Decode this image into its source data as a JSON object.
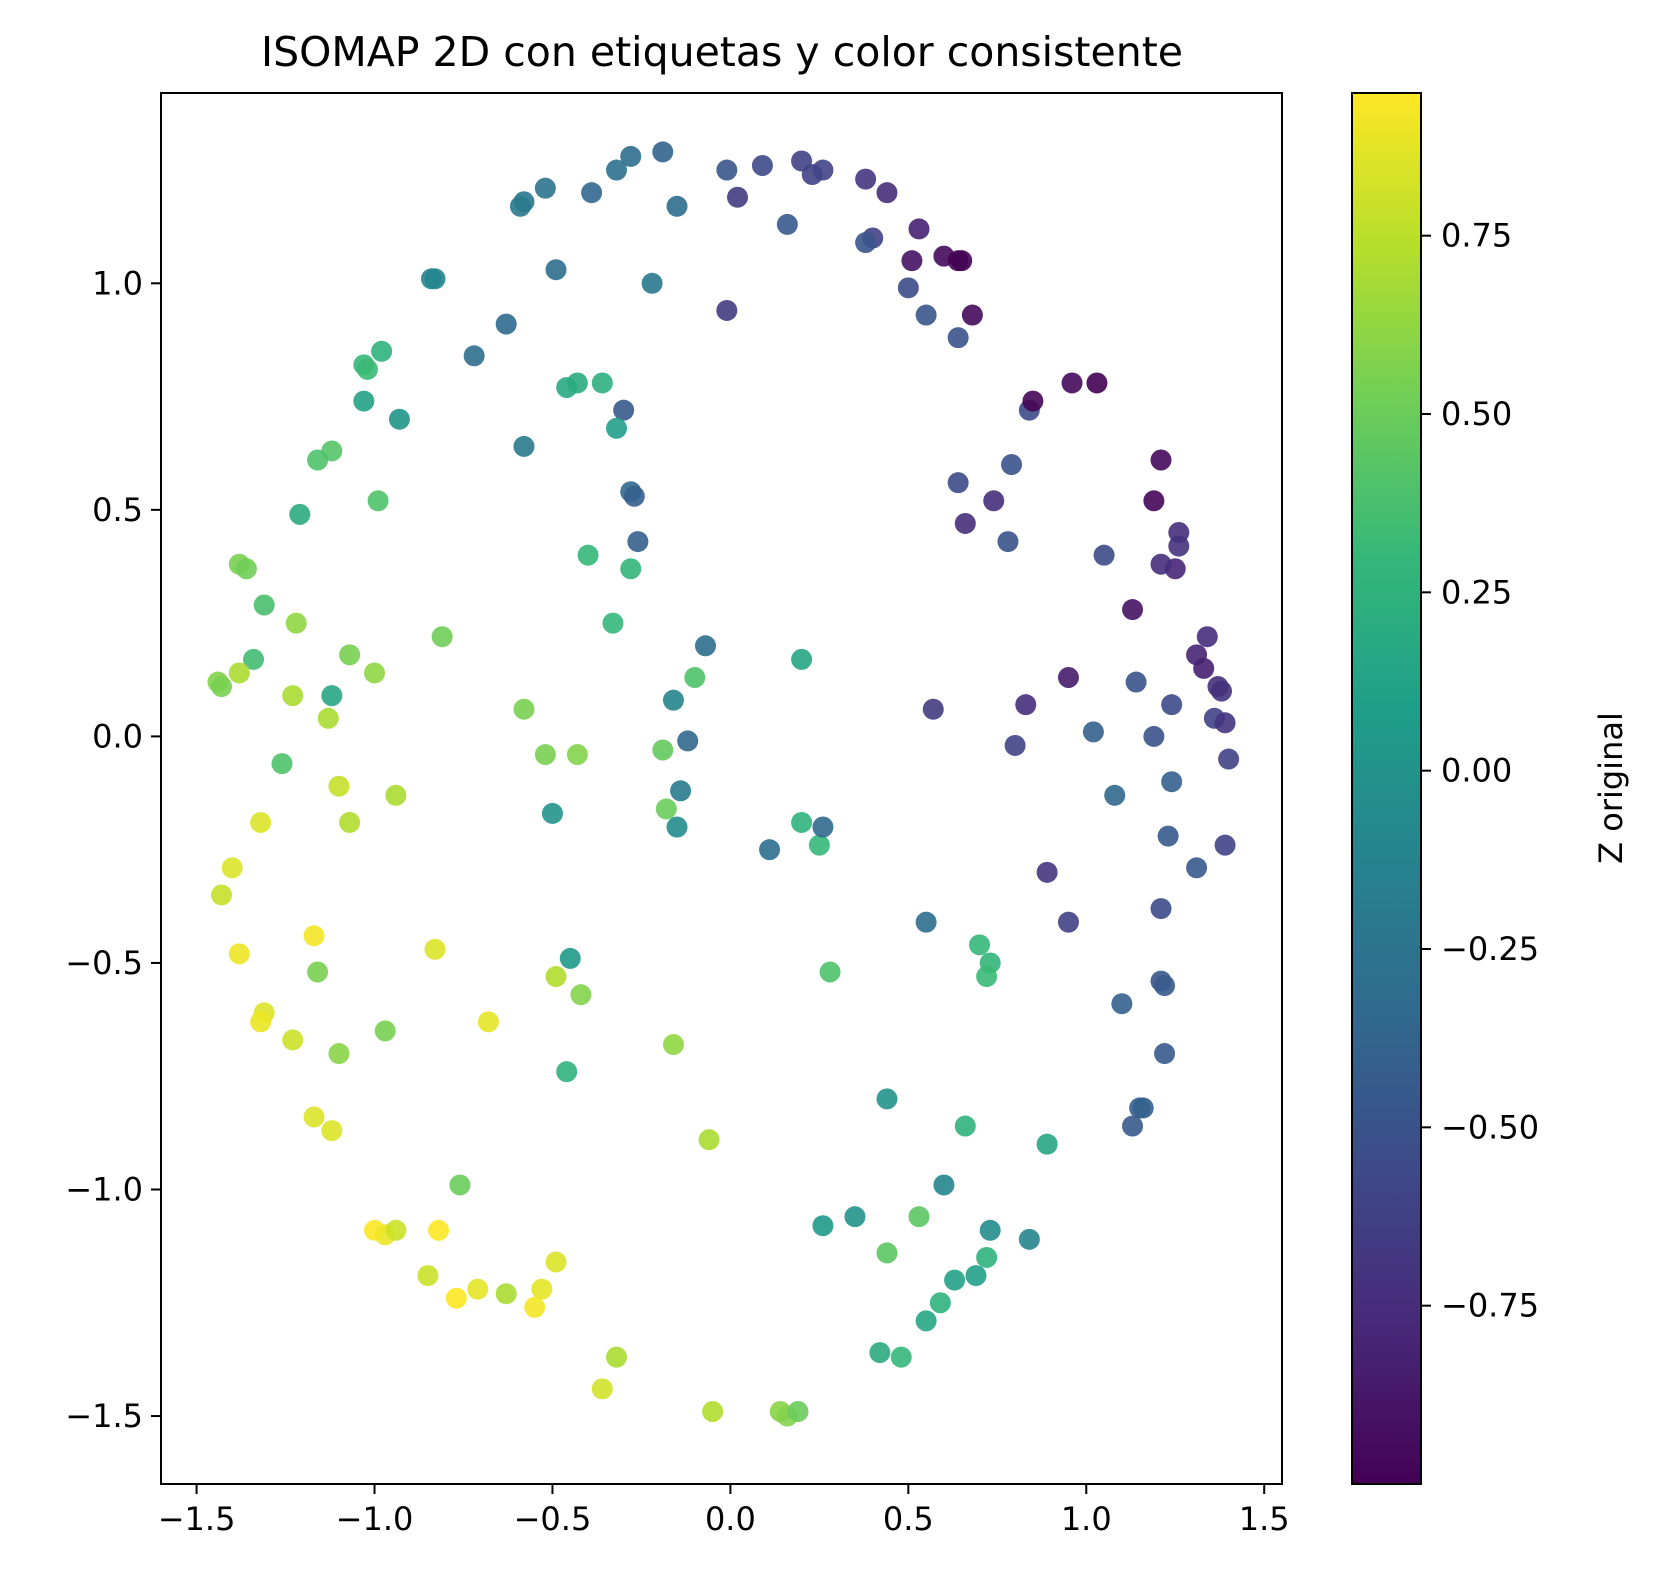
{
  "chart_data": {
    "type": "scatter",
    "title": "ISOMAP 2D con etiquetas y color consistente",
    "xlabel": "",
    "ylabel": "",
    "xlim": [
      -1.6,
      1.55
    ],
    "ylim": [
      -1.65,
      1.42
    ],
    "xticks": [
      -1.5,
      -1.0,
      -0.5,
      0.0,
      0.5,
      1.0,
      1.5
    ],
    "xtick_labels": [
      "−1.5",
      "−1.0",
      "−0.5",
      "0.0",
      "0.5",
      "1.0",
      "1.5"
    ],
    "yticks": [
      -1.5,
      -1.0,
      -0.5,
      0.0,
      0.5,
      1.0
    ],
    "ytick_labels": [
      "−1.5",
      "−1.0",
      "−0.5",
      "0.0",
      "0.5",
      "1.0"
    ],
    "grid": false,
    "colormap": "viridis",
    "colorbar": {
      "label": "Z original",
      "range": [
        -1.0,
        0.95
      ],
      "ticks": [
        -0.75,
        -0.5,
        -0.25,
        0.0,
        0.25,
        0.5,
        0.75
      ],
      "tick_labels": [
        "−0.75",
        "−0.50",
        "−0.25",
        "0.00",
        "0.25",
        "0.50",
        "0.75"
      ]
    },
    "colors": {
      "viridis_low": "#440154",
      "viridis_mid": "#21918c",
      "viridis_high": "#fde725"
    },
    "points": [
      {
        "x": -0.28,
        "y": 1.28,
        "z": -0.3
      },
      {
        "x": -0.19,
        "y": 1.29,
        "z": -0.38
      },
      {
        "x": -0.32,
        "y": 1.25,
        "z": -0.28
      },
      {
        "x": -0.39,
        "y": 1.2,
        "z": -0.36
      },
      {
        "x": -0.52,
        "y": 1.21,
        "z": -0.26
      },
      {
        "x": -0.58,
        "y": 1.18,
        "z": -0.22
      },
      {
        "x": -0.59,
        "y": 1.17,
        "z": -0.2
      },
      {
        "x": -0.15,
        "y": 1.17,
        "z": -0.3
      },
      {
        "x": -0.01,
        "y": 1.25,
        "z": -0.48
      },
      {
        "x": 0.09,
        "y": 1.26,
        "z": -0.55
      },
      {
        "x": 0.2,
        "y": 1.27,
        "z": -0.62
      },
      {
        "x": 0.23,
        "y": 1.24,
        "z": -0.62
      },
      {
        "x": 0.26,
        "y": 1.25,
        "z": -0.6
      },
      {
        "x": 0.02,
        "y": 1.19,
        "z": -0.65
      },
      {
        "x": 0.38,
        "y": 1.23,
        "z": -0.7
      },
      {
        "x": 0.44,
        "y": 1.2,
        "z": -0.75
      },
      {
        "x": 0.16,
        "y": 1.13,
        "z": -0.45
      },
      {
        "x": 0.4,
        "y": 1.1,
        "z": -0.62
      },
      {
        "x": 0.38,
        "y": 1.09,
        "z": -0.5
      },
      {
        "x": 0.53,
        "y": 1.12,
        "z": -0.82
      },
      {
        "x": 0.51,
        "y": 1.05,
        "z": -0.9
      },
      {
        "x": 0.6,
        "y": 1.06,
        "z": -0.95
      },
      {
        "x": 0.64,
        "y": 1.05,
        "z": -0.98
      },
      {
        "x": 0.65,
        "y": 1.05,
        "z": -1.0
      },
      {
        "x": 0.5,
        "y": 0.99,
        "z": -0.55
      },
      {
        "x": 0.55,
        "y": 0.93,
        "z": -0.48
      },
      {
        "x": 0.68,
        "y": 0.93,
        "z": -0.95
      },
      {
        "x": 0.64,
        "y": 0.88,
        "z": -0.5
      },
      {
        "x": -0.49,
        "y": 1.03,
        "z": -0.3
      },
      {
        "x": -0.22,
        "y": 1.0,
        "z": -0.22
      },
      {
        "x": -0.84,
        "y": 1.01,
        "z": -0.12
      },
      {
        "x": -0.83,
        "y": 1.01,
        "z": -0.1
      },
      {
        "x": -0.63,
        "y": 0.91,
        "z": -0.32
      },
      {
        "x": -0.72,
        "y": 0.84,
        "z": -0.3
      },
      {
        "x": -0.01,
        "y": 0.94,
        "z": -0.65
      },
      {
        "x": -0.98,
        "y": 0.85,
        "z": 0.25
      },
      {
        "x": -1.03,
        "y": 0.82,
        "z": 0.3
      },
      {
        "x": -1.02,
        "y": 0.81,
        "z": 0.32
      },
      {
        "x": -1.03,
        "y": 0.74,
        "z": 0.12
      },
      {
        "x": -0.93,
        "y": 0.7,
        "z": 0.02
      },
      {
        "x": -0.46,
        "y": 0.77,
        "z": 0.18
      },
      {
        "x": -0.43,
        "y": 0.78,
        "z": 0.2
      },
      {
        "x": -0.36,
        "y": 0.78,
        "z": 0.22
      },
      {
        "x": -0.3,
        "y": 0.72,
        "z": -0.45
      },
      {
        "x": -0.32,
        "y": 0.68,
        "z": 0.1
      },
      {
        "x": -0.58,
        "y": 0.64,
        "z": -0.2
      },
      {
        "x": -1.12,
        "y": 0.63,
        "z": 0.42
      },
      {
        "x": -1.16,
        "y": 0.61,
        "z": 0.4
      },
      {
        "x": -1.21,
        "y": 0.49,
        "z": 0.2
      },
      {
        "x": -0.99,
        "y": 0.52,
        "z": 0.4
      },
      {
        "x": -0.28,
        "y": 0.54,
        "z": -0.35
      },
      {
        "x": -0.27,
        "y": 0.53,
        "z": -0.4
      },
      {
        "x": -0.26,
        "y": 0.43,
        "z": -0.4
      },
      {
        "x": -0.4,
        "y": 0.4,
        "z": 0.3
      },
      {
        "x": -0.28,
        "y": 0.37,
        "z": 0.28
      },
      {
        "x": -1.38,
        "y": 0.38,
        "z": 0.55
      },
      {
        "x": -1.36,
        "y": 0.37,
        "z": 0.52
      },
      {
        "x": -1.31,
        "y": 0.29,
        "z": 0.38
      },
      {
        "x": -1.22,
        "y": 0.25,
        "z": 0.62
      },
      {
        "x": -0.81,
        "y": 0.22,
        "z": 0.52
      },
      {
        "x": -0.33,
        "y": 0.25,
        "z": 0.3
      },
      {
        "x": -1.07,
        "y": 0.18,
        "z": 0.55
      },
      {
        "x": -1.34,
        "y": 0.17,
        "z": 0.35
      },
      {
        "x": -1.38,
        "y": 0.14,
        "z": 0.7
      },
      {
        "x": -1.44,
        "y": 0.12,
        "z": 0.58
      },
      {
        "x": -1.43,
        "y": 0.11,
        "z": 0.55
      },
      {
        "x": -1.0,
        "y": 0.14,
        "z": 0.62
      },
      {
        "x": -1.23,
        "y": 0.09,
        "z": 0.7
      },
      {
        "x": -1.12,
        "y": 0.09,
        "z": 0.15
      },
      {
        "x": -1.13,
        "y": 0.04,
        "z": 0.7
      },
      {
        "x": -0.58,
        "y": 0.06,
        "z": 0.55
      },
      {
        "x": -0.52,
        "y": -0.04,
        "z": 0.55
      },
      {
        "x": -0.43,
        "y": -0.04,
        "z": 0.58
      },
      {
        "x": -0.19,
        "y": -0.03,
        "z": 0.48
      },
      {
        "x": -1.26,
        "y": -0.06,
        "z": 0.4
      },
      {
        "x": -1.1,
        "y": -0.11,
        "z": 0.78
      },
      {
        "x": -0.94,
        "y": -0.13,
        "z": 0.7
      },
      {
        "x": -1.07,
        "y": -0.19,
        "z": 0.72
      },
      {
        "x": -1.32,
        "y": -0.19,
        "z": 0.85
      },
      {
        "x": -1.4,
        "y": -0.29,
        "z": 0.85
      },
      {
        "x": -1.43,
        "y": -0.35,
        "z": 0.78
      },
      {
        "x": -0.18,
        "y": -0.16,
        "z": 0.5
      },
      {
        "x": -0.5,
        "y": -0.17,
        "z": 0.0
      },
      {
        "x": -0.15,
        "y": -0.2,
        "z": -0.05
      },
      {
        "x": -0.14,
        "y": -0.12,
        "z": -0.2
      },
      {
        "x": -0.16,
        "y": 0.08,
        "z": -0.1
      },
      {
        "x": -0.12,
        "y": -0.01,
        "z": -0.35
      },
      {
        "x": -0.1,
        "y": 0.13,
        "z": 0.4
      },
      {
        "x": -0.07,
        "y": 0.2,
        "z": -0.3
      },
      {
        "x": 0.2,
        "y": 0.17,
        "z": 0.15
      },
      {
        "x": 0.11,
        "y": -0.25,
        "z": -0.3
      },
      {
        "x": 0.2,
        "y": -0.19,
        "z": 0.25
      },
      {
        "x": 0.25,
        "y": -0.24,
        "z": 0.3
      },
      {
        "x": 0.26,
        "y": -0.2,
        "z": -0.35
      },
      {
        "x": -1.17,
        "y": -0.44,
        "z": 0.92
      },
      {
        "x": -1.38,
        "y": -0.48,
        "z": 0.9
      },
      {
        "x": -1.16,
        "y": -0.52,
        "z": 0.55
      },
      {
        "x": -0.83,
        "y": -0.47,
        "z": 0.85
      },
      {
        "x": -0.45,
        "y": -0.49,
        "z": 0.05
      },
      {
        "x": -0.49,
        "y": -0.53,
        "z": 0.72
      },
      {
        "x": -0.42,
        "y": -0.57,
        "z": 0.58
      },
      {
        "x": -0.68,
        "y": -0.63,
        "z": 0.88
      },
      {
        "x": -0.97,
        "y": -0.65,
        "z": 0.55
      },
      {
        "x": -1.31,
        "y": -0.61,
        "z": 0.85
      },
      {
        "x": -1.32,
        "y": -0.63,
        "z": 0.9
      },
      {
        "x": -1.23,
        "y": -0.67,
        "z": 0.8
      },
      {
        "x": -1.1,
        "y": -0.7,
        "z": 0.6
      },
      {
        "x": -0.46,
        "y": -0.74,
        "z": 0.25
      },
      {
        "x": -0.16,
        "y": -0.68,
        "z": 0.62
      },
      {
        "x": -1.17,
        "y": -0.84,
        "z": 0.85
      },
      {
        "x": -1.12,
        "y": -0.87,
        "z": 0.85
      },
      {
        "x": -0.06,
        "y": -0.89,
        "z": 0.7
      },
      {
        "x": -0.76,
        "y": -0.99,
        "z": 0.5
      },
      {
        "x": -1.0,
        "y": -1.09,
        "z": 0.95
      },
      {
        "x": -0.97,
        "y": -1.1,
        "z": 0.9
      },
      {
        "x": -0.94,
        "y": -1.09,
        "z": 0.8
      },
      {
        "x": -0.82,
        "y": -1.09,
        "z": 0.95
      },
      {
        "x": -0.85,
        "y": -1.19,
        "z": 0.8
      },
      {
        "x": -0.71,
        "y": -1.22,
        "z": 0.88
      },
      {
        "x": -0.77,
        "y": -1.24,
        "z": 0.95
      },
      {
        "x": -0.63,
        "y": -1.23,
        "z": 0.7
      },
      {
        "x": -0.53,
        "y": -1.22,
        "z": 0.88
      },
      {
        "x": -0.55,
        "y": -1.26,
        "z": 0.92
      },
      {
        "x": -0.49,
        "y": -1.16,
        "z": 0.85
      },
      {
        "x": -0.32,
        "y": -1.37,
        "z": 0.7
      },
      {
        "x": -0.36,
        "y": -1.44,
        "z": 0.82
      },
      {
        "x": -0.05,
        "y": -1.49,
        "z": 0.72
      },
      {
        "x": 0.14,
        "y": -1.49,
        "z": 0.6
      },
      {
        "x": 0.16,
        "y": -1.5,
        "z": 0.58
      },
      {
        "x": 0.19,
        "y": -1.49,
        "z": 0.5
      },
      {
        "x": 0.28,
        "y": -0.52,
        "z": 0.4
      },
      {
        "x": 0.55,
        "y": -0.41,
        "z": -0.3
      },
      {
        "x": 0.7,
        "y": -0.46,
        "z": 0.3
      },
      {
        "x": 0.73,
        "y": -0.5,
        "z": 0.28
      },
      {
        "x": 0.72,
        "y": -0.53,
        "z": 0.32
      },
      {
        "x": 0.44,
        "y": -0.8,
        "z": 0.0
      },
      {
        "x": 0.66,
        "y": -0.86,
        "z": 0.25
      },
      {
        "x": 0.89,
        "y": -0.9,
        "z": 0.15
      },
      {
        "x": 0.6,
        "y": -0.99,
        "z": -0.1
      },
      {
        "x": 0.35,
        "y": -1.06,
        "z": 0.0
      },
      {
        "x": 0.26,
        "y": -1.08,
        "z": 0.05
      },
      {
        "x": 0.53,
        "y": -1.06,
        "z": 0.45
      },
      {
        "x": 0.73,
        "y": -1.09,
        "z": -0.05
      },
      {
        "x": 0.84,
        "y": -1.11,
        "z": -0.1
      },
      {
        "x": 0.44,
        "y": -1.14,
        "z": 0.45
      },
      {
        "x": 0.72,
        "y": -1.15,
        "z": 0.25
      },
      {
        "x": 0.69,
        "y": -1.19,
        "z": 0.1
      },
      {
        "x": 0.63,
        "y": -1.2,
        "z": 0.12
      },
      {
        "x": 0.59,
        "y": -1.25,
        "z": 0.25
      },
      {
        "x": 0.55,
        "y": -1.29,
        "z": 0.15
      },
      {
        "x": 0.42,
        "y": -1.36,
        "z": 0.2
      },
      {
        "x": 0.48,
        "y": -1.37,
        "z": 0.3
      },
      {
        "x": 0.96,
        "y": 0.78,
        "z": -0.95
      },
      {
        "x": 0.84,
        "y": 0.72,
        "z": -0.55
      },
      {
        "x": 0.85,
        "y": 0.74,
        "z": -0.98
      },
      {
        "x": 1.03,
        "y": 0.78,
        "z": -1.0
      },
      {
        "x": 0.79,
        "y": 0.6,
        "z": -0.5
      },
      {
        "x": 0.64,
        "y": 0.56,
        "z": -0.55
      },
      {
        "x": 0.74,
        "y": 0.52,
        "z": -0.75
      },
      {
        "x": 0.66,
        "y": 0.47,
        "z": -0.75
      },
      {
        "x": 0.78,
        "y": 0.43,
        "z": -0.5
      },
      {
        "x": 1.21,
        "y": 0.61,
        "z": -0.95
      },
      {
        "x": 1.19,
        "y": 0.52,
        "z": -0.97
      },
      {
        "x": 1.26,
        "y": 0.45,
        "z": -0.75
      },
      {
        "x": 1.26,
        "y": 0.42,
        "z": -0.72
      },
      {
        "x": 1.25,
        "y": 0.37,
        "z": -0.8
      },
      {
        "x": 1.21,
        "y": 0.38,
        "z": -0.75
      },
      {
        "x": 1.05,
        "y": 0.4,
        "z": -0.55
      },
      {
        "x": 1.13,
        "y": 0.28,
        "z": -0.9
      },
      {
        "x": 1.34,
        "y": 0.22,
        "z": -0.75
      },
      {
        "x": 1.31,
        "y": 0.18,
        "z": -0.8
      },
      {
        "x": 1.33,
        "y": 0.15,
        "z": -0.82
      },
      {
        "x": 1.37,
        "y": 0.11,
        "z": -0.75
      },
      {
        "x": 1.38,
        "y": 0.1,
        "z": -0.72
      },
      {
        "x": 0.95,
        "y": 0.13,
        "z": -0.85
      },
      {
        "x": 1.14,
        "y": 0.12,
        "z": -0.5
      },
      {
        "x": 1.24,
        "y": 0.07,
        "z": -0.55
      },
      {
        "x": 0.83,
        "y": 0.07,
        "z": -0.75
      },
      {
        "x": 0.57,
        "y": 0.06,
        "z": -0.65
      },
      {
        "x": 1.36,
        "y": 0.04,
        "z": -0.62
      },
      {
        "x": 1.39,
        "y": 0.03,
        "z": -0.7
      },
      {
        "x": 1.02,
        "y": 0.01,
        "z": -0.4
      },
      {
        "x": 1.19,
        "y": 0.0,
        "z": -0.5
      },
      {
        "x": 0.8,
        "y": -0.02,
        "z": -0.6
      },
      {
        "x": 1.4,
        "y": -0.05,
        "z": -0.6
      },
      {
        "x": 1.24,
        "y": -0.1,
        "z": -0.4
      },
      {
        "x": 1.08,
        "y": -0.13,
        "z": -0.35
      },
      {
        "x": 1.23,
        "y": -0.22,
        "z": -0.45
      },
      {
        "x": 1.39,
        "y": -0.24,
        "z": -0.6
      },
      {
        "x": 0.89,
        "y": -0.3,
        "z": -0.7
      },
      {
        "x": 1.31,
        "y": -0.29,
        "z": -0.45
      },
      {
        "x": 1.21,
        "y": -0.38,
        "z": -0.55
      },
      {
        "x": 0.95,
        "y": -0.41,
        "z": -0.62
      },
      {
        "x": 1.21,
        "y": -0.54,
        "z": -0.48
      },
      {
        "x": 1.22,
        "y": -0.55,
        "z": -0.45
      },
      {
        "x": 1.1,
        "y": -0.59,
        "z": -0.4
      },
      {
        "x": 1.22,
        "y": -0.7,
        "z": -0.45
      },
      {
        "x": 1.15,
        "y": -0.82,
        "z": -0.42
      },
      {
        "x": 1.16,
        "y": -0.82,
        "z": -0.4
      },
      {
        "x": 1.13,
        "y": -0.86,
        "z": -0.45
      }
    ]
  }
}
